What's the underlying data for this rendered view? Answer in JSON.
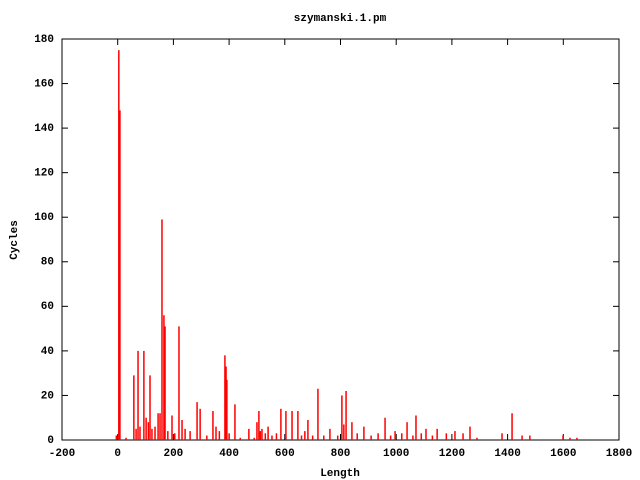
{
  "chart_data": {
    "type": "impulse",
    "title": "szymanski.1.pm",
    "x_label": "Length",
    "y_label": "Cycles",
    "color": "#ff0000",
    "x": [
      -5,
      4,
      8,
      30,
      58,
      66,
      73,
      80,
      94,
      102,
      110,
      116,
      123,
      134,
      145,
      152,
      159,
      166,
      170,
      180,
      195,
      205,
      220,
      231,
      242,
      260,
      285,
      296,
      320,
      342,
      353,
      365,
      385,
      389,
      392,
      400,
      421,
      440,
      471,
      490,
      500,
      507,
      512,
      518,
      530,
      540,
      554,
      570,
      586,
      604,
      626,
      647,
      660,
      672,
      683,
      700,
      719,
      740,
      762,
      790,
      805,
      812,
      820,
      841,
      860,
      884,
      910,
      935,
      960,
      980,
      996,
      1020,
      1039,
      1060,
      1071,
      1090,
      1107,
      1130,
      1147,
      1180,
      1211,
      1240,
      1265,
      1290,
      1380,
      1416,
      1452,
      1480,
      1599,
      1624,
      1649
    ],
    "values": [
      2,
      175,
      148,
      1,
      29,
      5,
      40,
      6,
      40,
      10,
      8,
      29,
      5,
      6,
      12,
      12,
      99,
      56,
      51,
      4,
      11,
      3,
      51,
      9,
      5,
      4,
      17,
      14,
      2,
      13,
      6,
      4,
      38,
      33,
      27,
      3,
      16,
      1,
      5,
      1,
      8,
      13,
      4,
      5,
      3,
      6,
      2,
      3,
      14,
      13,
      13,
      13,
      2,
      4,
      9,
      2,
      23,
      2,
      5,
      2,
      20,
      7,
      22,
      8,
      3,
      6,
      2,
      3,
      10,
      2,
      4,
      3,
      8,
      2,
      11,
      3,
      5,
      2,
      5,
      3,
      4,
      3,
      6,
      1,
      3,
      12,
      2,
      2,
      2,
      1,
      1
    ],
    "xlim": [
      -200,
      1800
    ],
    "xticks": [
      -200,
      0,
      200,
      400,
      600,
      800,
      1000,
      1200,
      1400,
      1600,
      1800
    ],
    "ylim": [
      0,
      180
    ],
    "yticks": [
      0,
      20,
      40,
      60,
      80,
      100,
      120,
      140,
      160,
      180
    ]
  }
}
